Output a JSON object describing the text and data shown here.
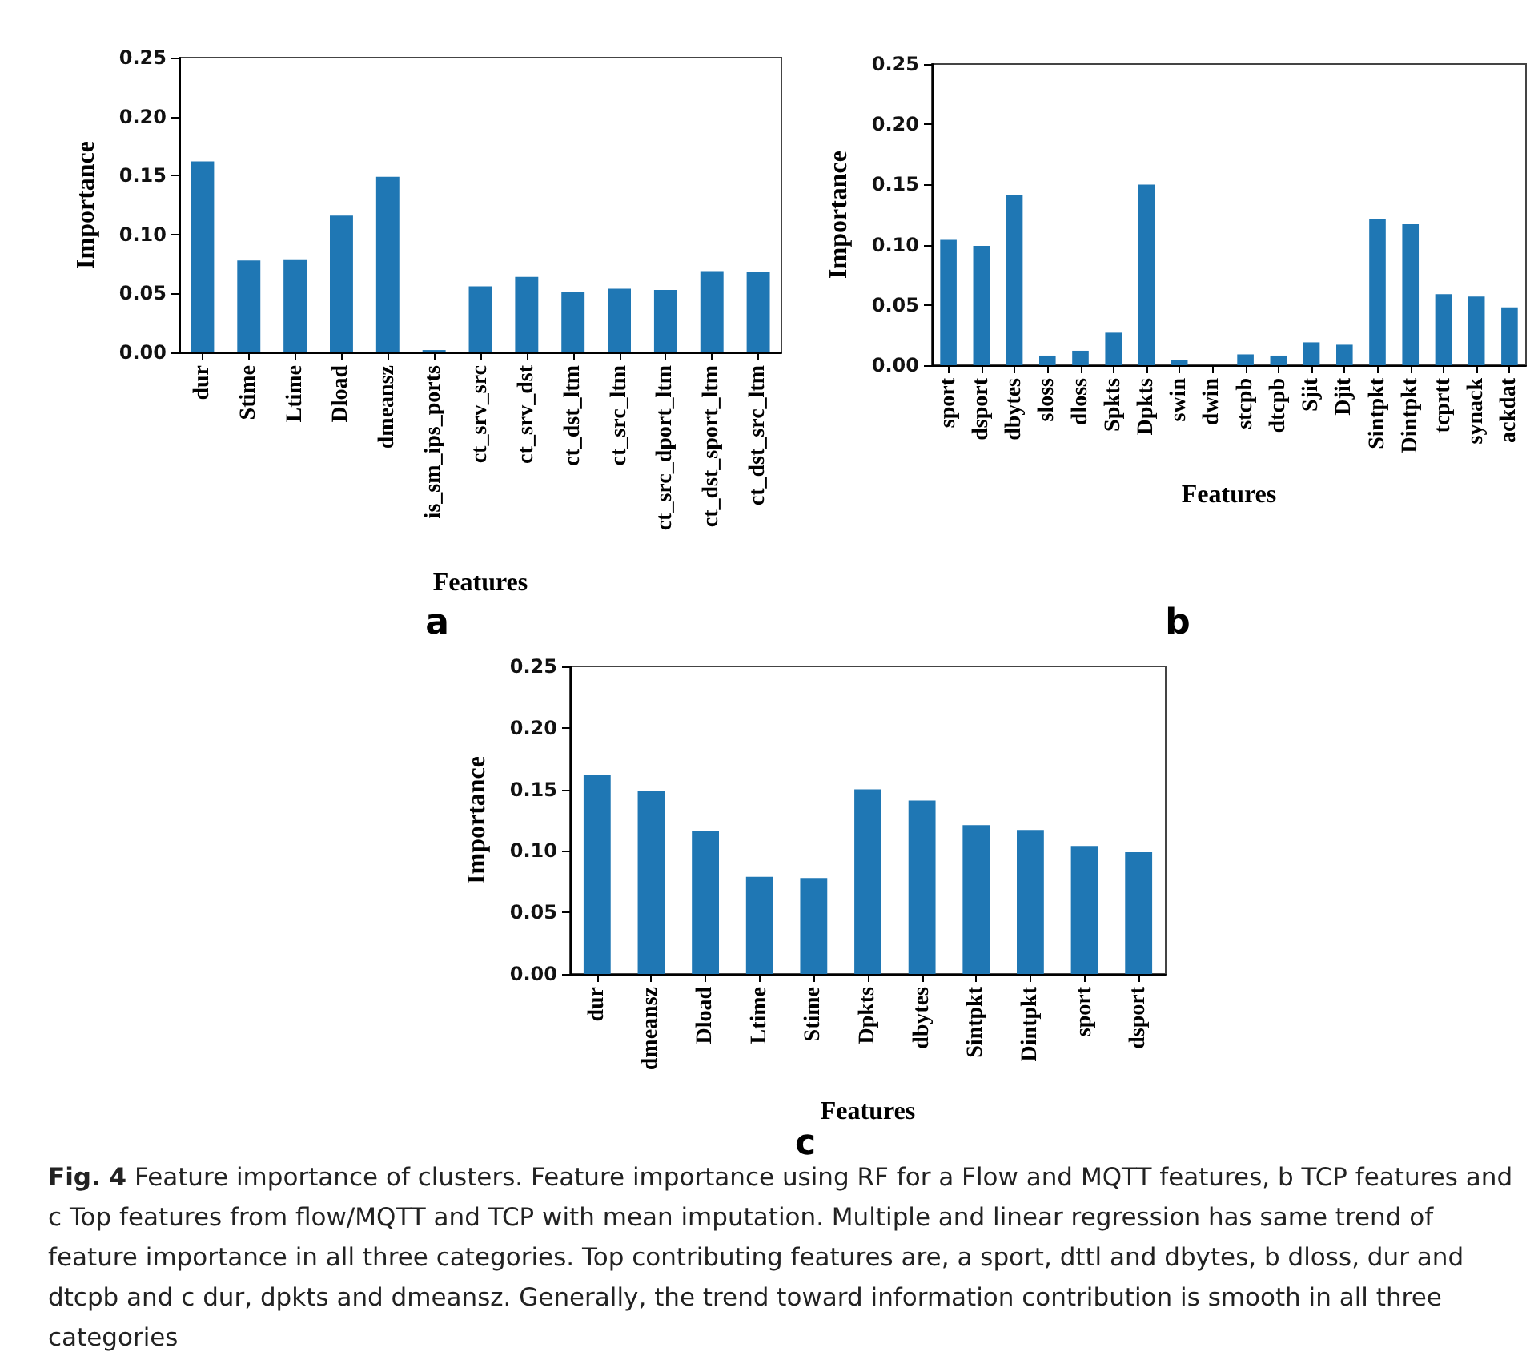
{
  "chart_data": [
    {
      "type": "bar",
      "categories": [
        "dur",
        "Stime",
        "Ltime",
        "Dload",
        "dmeansz",
        "is_sm_ips_ports",
        "ct_srv_src",
        "ct_srv_dst",
        "ct_dst_ltm",
        "ct_src_ltm",
        "ct_src_dport_ltm",
        "ct_dst_sport_ltm",
        "ct_dst_src_ltm"
      ],
      "values": [
        0.162,
        0.078,
        0.079,
        0.116,
        0.149,
        0.002,
        0.056,
        0.064,
        0.051,
        0.054,
        0.053,
        0.069,
        0.068
      ],
      "color": "#1f77b4",
      "xlabel": "Features",
      "ylabel": "Importance",
      "ylim": [
        0,
        0.25
      ],
      "yticks": [
        {
          "value": 0,
          "label": "0.00"
        },
        0.05,
        {
          "value": 0.1,
          "label": "0.10"
        },
        0.15,
        {
          "value": 0.2,
          "label": "0.20"
        },
        0.25
      ],
      "annotations": [
        "a"
      ]
    },
    {
      "type": "bar",
      "categories": [
        "sport",
        "dsport",
        "dbytes",
        "sloss",
        "dloss",
        "Spkts",
        "Dpkts",
        "swin",
        "dwin",
        "stcpb",
        "dtcpb",
        "Sjit",
        "Djit",
        "Sintpkt",
        "Dintpkt",
        "tcprtt",
        "synack",
        "ackdat"
      ],
      "values": [
        0.104,
        0.099,
        0.141,
        0.008,
        0.012,
        0.027,
        0.15,
        0.004,
        0,
        0.009,
        0.008,
        0.019,
        0.017,
        0.121,
        0.117,
        0.059,
        0.057,
        0.048
      ],
      "color": "#1f77b4",
      "xlabel": "Features",
      "ylabel": "Importance",
      "ylim": [
        0,
        0.25
      ],
      "yticks": [
        {
          "value": 0,
          "label": "0.00"
        },
        0.05,
        {
          "value": 0.1,
          "label": "0.10"
        },
        0.15,
        {
          "value": 0.2,
          "label": "0.20"
        },
        0.25
      ],
      "annotations": [
        "b"
      ]
    },
    {
      "type": "bar",
      "categories": [
        "dur",
        "dmeansz",
        "Dload",
        "Ltime",
        "Stime",
        "Dpkts",
        "dbytes",
        "Sintpkt",
        "Dintpkt",
        "sport",
        "dsport"
      ],
      "values": [
        0.162,
        0.149,
        0.116,
        0.079,
        0.078,
        0.15,
        0.141,
        0.121,
        0.117,
        0.104,
        0.099
      ],
      "color": "#1f77b4",
      "xlabel": "Features",
      "ylabel": "Importance",
      "ylim": [
        0,
        0.25
      ],
      "yticks": [
        {
          "value": 0,
          "label": "0.00"
        },
        0.05,
        {
          "value": 0.1,
          "label": "0.10"
        },
        0.15,
        {
          "value": 0.2,
          "label": "0.20"
        },
        0.25
      ],
      "annotations": [
        "c",
        "Fig. 4 Feature importance of clusters. Feature importance using RF for a Flow and MQTT features, b TCP features and c Top features from flow/MQTT and TCP with mean imputation. Multiple and linear regression has same trend of feature importance in all three categories. Top contributing features are, a sport, dttl and dbytes, b dloss, dur and dtcpb and c dur, dpkts and dmeansz. Generally, the trend toward information contribution is smooth in all three categories"
      ]
    }
  ]
}
